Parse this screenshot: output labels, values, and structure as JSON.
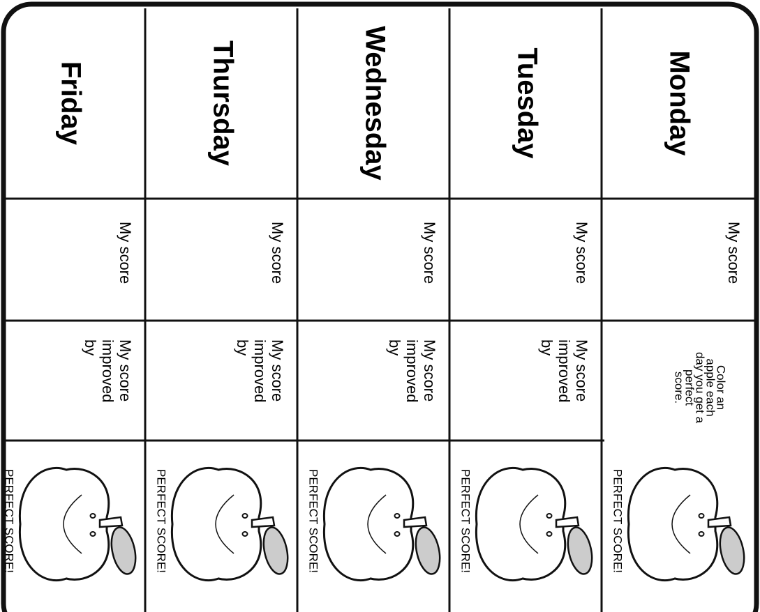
{
  "columns": [
    {
      "day": "Monday",
      "score_label": "My score",
      "note_lines": [
        "Color an",
        "apple  each",
        "day you get a",
        "perfect",
        "score."
      ],
      "apple_label": "PERFECT SCORE!"
    },
    {
      "day": "Tuesday",
      "score_label": "My score",
      "improved_lines": [
        "My score",
        "improved",
        "by"
      ],
      "apple_label": "PERFECT SCORE!"
    },
    {
      "day": "Wednesday",
      "score_label": "My score",
      "improved_lines": [
        "My score",
        "improved",
        "by"
      ],
      "apple_label": "PERFECT SCORE!"
    },
    {
      "day": "Thursday",
      "score_label": "My score",
      "improved_lines": [
        "My score",
        "improved",
        "by"
      ],
      "apple_label": "PERFECT SCORE!"
    },
    {
      "day": "Friday",
      "score_label": "My score",
      "improved_lines": [
        "My score",
        "improved",
        "by"
      ],
      "apple_label": "PERFECT SCORE!"
    }
  ]
}
